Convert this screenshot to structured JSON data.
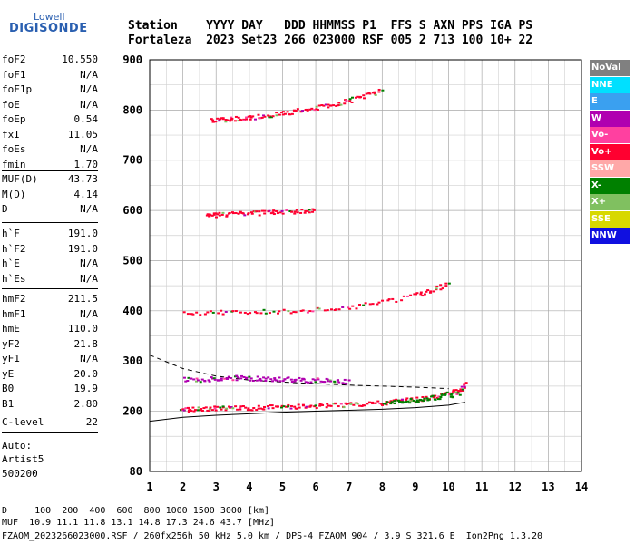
{
  "logo": {
    "top": "Lowell",
    "bottom": "DIGISONDE"
  },
  "header": {
    "line1": "Station    YYYY DAY   DDD HHMMSS P1  FFS S AXN PPS IGA PS",
    "line2": "Fortaleza  2023 Set23 266 023000 RSF 005 2 713 100 10+ 22"
  },
  "params": [
    {
      "k": "foF2",
      "v": "10.550"
    },
    {
      "k": "foF1",
      "v": "N/A"
    },
    {
      "k": "foF1p",
      "v": "N/A"
    },
    {
      "k": "foE",
      "v": "N/A"
    },
    {
      "k": "foEp",
      "v": "0.54"
    },
    {
      "k": "fxI",
      "v": "11.05"
    },
    {
      "k": "foEs",
      "v": "N/A"
    },
    {
      "k": "fmin",
      "v": "1.70"
    },
    {
      "k": "MUF(D)",
      "v": "43.73"
    },
    {
      "k": "M(D)",
      "v": "4.14"
    },
    {
      "k": "D",
      "v": "N/A"
    },
    {
      "k": "h`F",
      "v": "191.0"
    },
    {
      "k": "h`F2",
      "v": "191.0"
    },
    {
      "k": "h`E",
      "v": "N/A"
    },
    {
      "k": "h`Es",
      "v": "N/A"
    },
    {
      "k": "hmF2",
      "v": "211.5"
    },
    {
      "k": "hmF1",
      "v": "N/A"
    },
    {
      "k": "hmE",
      "v": "110.0"
    },
    {
      "k": "yF2",
      "v": "21.8"
    },
    {
      "k": "yF1",
      "v": "N/A"
    },
    {
      "k": "yE",
      "v": "20.0"
    },
    {
      "k": "B0",
      "v": "19.9"
    },
    {
      "k": "B1",
      "v": "2.80"
    },
    {
      "k": "C-level",
      "v": "22"
    }
  ],
  "auto": {
    "l1": "Auto:",
    "l2": "Artist5",
    "l3": "500200"
  },
  "legend": [
    {
      "label": "NoVal",
      "color": "#808080"
    },
    {
      "label": "NNE",
      "color": "#00e0ff"
    },
    {
      "label": "E",
      "color": "#3aa0f0"
    },
    {
      "label": "W",
      "color": "#b000b0"
    },
    {
      "label": "Vo-",
      "color": "#ff40a0"
    },
    {
      "label": "Vo+",
      "color": "#ff0030"
    },
    {
      "label": "SSW",
      "color": "#ffa8a8"
    },
    {
      "label": "X-",
      "color": "#008000"
    },
    {
      "label": "X+",
      "color": "#80c060"
    },
    {
      "label": "SSE",
      "color": "#d8d800"
    },
    {
      "label": "NNW",
      "color": "#1010e0"
    }
  ],
  "footer": {
    "line1": "D     100  200  400  600  800 1000 1500 3000 [km]",
    "line2": "MUF  10.9 11.1 11.8 13.1 14.8 17.3 24.6 43.7 [MHz]",
    "line3": "FZAOM_2023266023000.RSF / 260fx256h 50 kHz 5.0 km / DPS-4 FZAOM 904 / 3.9 S 321.6 E  Ion2Png 1.3.20"
  },
  "chart_data": {
    "type": "scatter",
    "x_ticks": [
      "1",
      "2",
      "3",
      "4",
      "5",
      "6",
      "7",
      "8",
      "9",
      "10",
      "11",
      "12",
      "13",
      "14"
    ],
    "y_ticks": [
      "80",
      "200",
      "300",
      "400",
      "500",
      "600",
      "700",
      "800",
      "900"
    ],
    "xlim": [
      1,
      14
    ],
    "y_scale_note": "axis labels as printed",
    "grid": true,
    "traces": [
      {
        "name": "F-trace",
        "color": "#ff0030",
        "x": [
          1.9,
          2.2,
          2.6,
          3.0,
          3.5,
          4.0,
          4.5,
          5.0,
          5.5,
          6.0,
          6.5,
          7.0,
          7.5,
          8.0,
          8.5,
          9.0,
          9.5,
          10.0,
          10.3,
          10.5
        ],
        "y": [
          205,
          205,
          206,
          207,
          207,
          208,
          209,
          210,
          211,
          212,
          213,
          214,
          216,
          218,
          221,
          225,
          230,
          236,
          245,
          255
        ]
      },
      {
        "name": "W-echoes",
        "color": "#b000b0",
        "x": [
          2.0,
          2.5,
          3.0,
          3.5,
          4.0,
          4.5,
          5.0,
          5.5,
          6.0,
          6.5,
          7.0
        ],
        "y": [
          265,
          264,
          266,
          268,
          267,
          266,
          265,
          264,
          263,
          262,
          260
        ]
      },
      {
        "name": "2nd-hop",
        "color": "#ff0030",
        "x": [
          2.0,
          3.0,
          4.0,
          5.0,
          6.0,
          7.0,
          8.0,
          9.0,
          9.5,
          10.0
        ],
        "y": [
          397,
          398,
          399,
          401,
          403,
          408,
          418,
          432,
          442,
          456
        ]
      },
      {
        "name": "3rd-hop",
        "color": "#ff0030",
        "x": [
          2.7,
          3.0,
          3.5,
          4.0,
          4.5,
          5.0,
          5.5,
          6.0
        ],
        "y": [
          592,
          593,
          595,
          596,
          597,
          598,
          600,
          602
        ]
      },
      {
        "name": "4th-hop",
        "color": "#ff0030",
        "x": [
          2.8,
          3.2,
          3.6,
          4.0,
          4.5,
          5.0,
          5.5,
          6.0,
          6.5,
          7.0,
          7.5,
          8.0
        ],
        "y": [
          780,
          782,
          784,
          786,
          790,
          795,
          800,
          805,
          812,
          820,
          830,
          840
        ]
      },
      {
        "name": "X-mode",
        "color": "#008000",
        "x": [
          8.0,
          8.5,
          9.0,
          9.5,
          10.0,
          10.3
        ],
        "y": [
          218,
          220,
          224,
          228,
          232,
          238
        ]
      }
    ],
    "profile_solid": {
      "x": [
        1.0,
        2.0,
        3.0,
        4.0,
        5.0,
        6.0,
        7.0,
        8.0,
        9.0,
        10.0,
        10.5
      ],
      "y": [
        180,
        188,
        192,
        195,
        198,
        200,
        202,
        204,
        207,
        212,
        218
      ]
    },
    "profile_dashed": {
      "x": [
        1.0,
        2.0,
        3.0,
        4.0,
        5.0,
        6.0,
        7.0,
        8.0,
        9.0,
        10.0
      ],
      "y": [
        312,
        285,
        270,
        262,
        258,
        255,
        252,
        250,
        248,
        245
      ]
    }
  }
}
